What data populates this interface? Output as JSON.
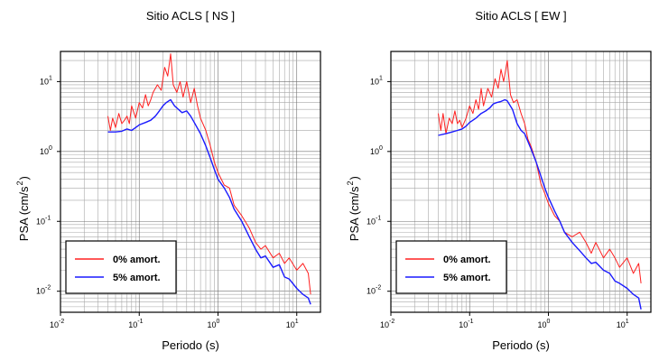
{
  "chart_data": [
    {
      "type": "line",
      "title": "Sitio ACLS [ NS ]",
      "xlabel": "Periodo (s)",
      "ylabel_base": "PSA (cm/s",
      "ylabel_exp": "2",
      "ylabel_close": ")",
      "x_scale": "log",
      "y_scale": "log",
      "xlim": [
        0.01,
        20
      ],
      "ylim": [
        0.005,
        27
      ],
      "grid": true,
      "legend_position": "lower-left",
      "x_ticks": [
        {
          "base": "10",
          "exp": "-2",
          "value": 0.01
        },
        {
          "base": "10",
          "exp": "-1",
          "value": 0.1
        },
        {
          "base": "10",
          "exp": "0",
          "value": 1
        },
        {
          "base": "10",
          "exp": "1",
          "value": 10
        }
      ],
      "y_ticks": [
        {
          "base": "10",
          "exp": "-2",
          "value": 0.01
        },
        {
          "base": "10",
          "exp": "-1",
          "value": 0.1
        },
        {
          "base": "10",
          "exp": "0",
          "value": 1
        },
        {
          "base": "10",
          "exp": "1",
          "value": 10
        }
      ],
      "series": [
        {
          "name": "0% amort.",
          "color": "#ff2020",
          "x": [
            0.04,
            0.043,
            0.046,
            0.05,
            0.055,
            0.06,
            0.065,
            0.07,
            0.075,
            0.08,
            0.09,
            0.1,
            0.11,
            0.12,
            0.13,
            0.14,
            0.15,
            0.17,
            0.19,
            0.21,
            0.23,
            0.25,
            0.27,
            0.3,
            0.33,
            0.36,
            0.4,
            0.45,
            0.5,
            0.55,
            0.6,
            0.7,
            0.8,
            0.9,
            1.0,
            1.2,
            1.4,
            1.6,
            2.0,
            2.5,
            3.0,
            3.5,
            4.0,
            5.0,
            6.0,
            7.0,
            8.0,
            10.0,
            12.0,
            14.0,
            15.0
          ],
          "y": [
            3.2,
            2.0,
            3.0,
            2.2,
            3.5,
            2.5,
            2.8,
            3.2,
            2.5,
            4.5,
            3.0,
            5.0,
            4.2,
            6.5,
            4.5,
            5.5,
            7.0,
            9.0,
            7.5,
            16.0,
            12.0,
            25.0,
            9.0,
            7.0,
            10.0,
            6.0,
            10.0,
            5.0,
            8.0,
            4.5,
            3.0,
            2.0,
            1.2,
            0.7,
            0.5,
            0.33,
            0.3,
            0.17,
            0.12,
            0.08,
            0.05,
            0.04,
            0.045,
            0.03,
            0.035,
            0.025,
            0.03,
            0.02,
            0.025,
            0.018,
            0.009
          ]
        },
        {
          "name": "5% amort.",
          "color": "#1a1aff",
          "x": [
            0.04,
            0.05,
            0.06,
            0.07,
            0.08,
            0.09,
            0.1,
            0.12,
            0.14,
            0.16,
            0.18,
            0.2,
            0.22,
            0.25,
            0.28,
            0.3,
            0.35,
            0.4,
            0.45,
            0.5,
            0.6,
            0.7,
            0.8,
            0.9,
            1.0,
            1.2,
            1.4,
            1.6,
            2.0,
            2.5,
            3.0,
            3.5,
            4.0,
            5.0,
            6.0,
            7.0,
            8.0,
            10.0,
            12.0,
            14.0,
            15.0
          ],
          "y": [
            1.9,
            1.9,
            1.95,
            2.1,
            2.0,
            2.2,
            2.4,
            2.6,
            2.8,
            3.2,
            3.8,
            4.5,
            5.0,
            5.5,
            4.5,
            4.2,
            3.6,
            3.8,
            3.2,
            2.6,
            1.8,
            1.2,
            0.8,
            0.55,
            0.4,
            0.3,
            0.22,
            0.15,
            0.1,
            0.06,
            0.04,
            0.03,
            0.032,
            0.022,
            0.024,
            0.016,
            0.015,
            0.011,
            0.009,
            0.008,
            0.0065
          ]
        }
      ]
    },
    {
      "type": "line",
      "title": "Sitio ACLS [ EW ]",
      "xlabel": "Periodo (s)",
      "ylabel_base": "PSA (cm/s",
      "ylabel_exp": "2",
      "ylabel_close": ")",
      "x_scale": "log",
      "y_scale": "log",
      "xlim": [
        0.01,
        20
      ],
      "ylim": [
        0.005,
        27
      ],
      "grid": true,
      "legend_position": "lower-left",
      "x_ticks": [
        {
          "base": "10",
          "exp": "-2",
          "value": 0.01
        },
        {
          "base": "10",
          "exp": "-1",
          "value": 0.1
        },
        {
          "base": "10",
          "exp": "0",
          "value": 1
        },
        {
          "base": "10",
          "exp": "1",
          "value": 10
        }
      ],
      "y_ticks": [
        {
          "base": "10",
          "exp": "-2",
          "value": 0.01
        },
        {
          "base": "10",
          "exp": "-1",
          "value": 0.1
        },
        {
          "base": "10",
          "exp": "0",
          "value": 1
        },
        {
          "base": "10",
          "exp": "1",
          "value": 10
        }
      ],
      "series": [
        {
          "name": "0% amort.",
          "color": "#ff2020",
          "x": [
            0.04,
            0.043,
            0.046,
            0.05,
            0.055,
            0.06,
            0.065,
            0.07,
            0.075,
            0.08,
            0.09,
            0.1,
            0.11,
            0.12,
            0.13,
            0.14,
            0.15,
            0.17,
            0.19,
            0.21,
            0.23,
            0.25,
            0.27,
            0.3,
            0.33,
            0.36,
            0.4,
            0.45,
            0.5,
            0.55,
            0.6,
            0.7,
            0.8,
            0.9,
            1.0,
            1.2,
            1.4,
            1.6,
            2.0,
            2.5,
            3.0,
            3.5,
            4.0,
            5.0,
            6.0,
            7.0,
            8.0,
            10.0,
            12.0,
            14.0,
            15.0
          ],
          "y": [
            3.5,
            2.0,
            3.5,
            1.8,
            3.0,
            2.5,
            3.8,
            2.5,
            2.8,
            2.2,
            3.0,
            4.5,
            3.5,
            5.5,
            4.0,
            8.0,
            4.5,
            8.0,
            6.0,
            11.0,
            8.0,
            15.0,
            10.0,
            20.0,
            6.5,
            5.0,
            5.5,
            3.5,
            2.5,
            1.5,
            1.2,
            0.7,
            0.35,
            0.25,
            0.18,
            0.12,
            0.1,
            0.07,
            0.06,
            0.07,
            0.05,
            0.035,
            0.05,
            0.03,
            0.04,
            0.03,
            0.022,
            0.03,
            0.018,
            0.025,
            0.013
          ]
        },
        {
          "name": "5% amort.",
          "color": "#1a1aff",
          "x": [
            0.04,
            0.05,
            0.06,
            0.07,
            0.08,
            0.09,
            0.1,
            0.12,
            0.14,
            0.16,
            0.18,
            0.2,
            0.22,
            0.25,
            0.28,
            0.3,
            0.35,
            0.4,
            0.45,
            0.5,
            0.6,
            0.7,
            0.8,
            0.9,
            1.0,
            1.2,
            1.4,
            1.6,
            2.0,
            2.5,
            3.0,
            3.5,
            4.0,
            5.0,
            6.0,
            7.0,
            8.0,
            10.0,
            12.0,
            14.0,
            15.0
          ],
          "y": [
            1.7,
            1.8,
            1.9,
            2.0,
            2.1,
            2.3,
            2.6,
            3.0,
            3.5,
            3.8,
            4.2,
            4.8,
            5.0,
            5.2,
            5.5,
            5.3,
            4.0,
            2.5,
            2.0,
            1.8,
            1.1,
            0.7,
            0.45,
            0.3,
            0.22,
            0.14,
            0.1,
            0.07,
            0.05,
            0.038,
            0.03,
            0.025,
            0.026,
            0.02,
            0.018,
            0.014,
            0.013,
            0.011,
            0.009,
            0.008,
            0.0055
          ]
        }
      ]
    }
  ]
}
